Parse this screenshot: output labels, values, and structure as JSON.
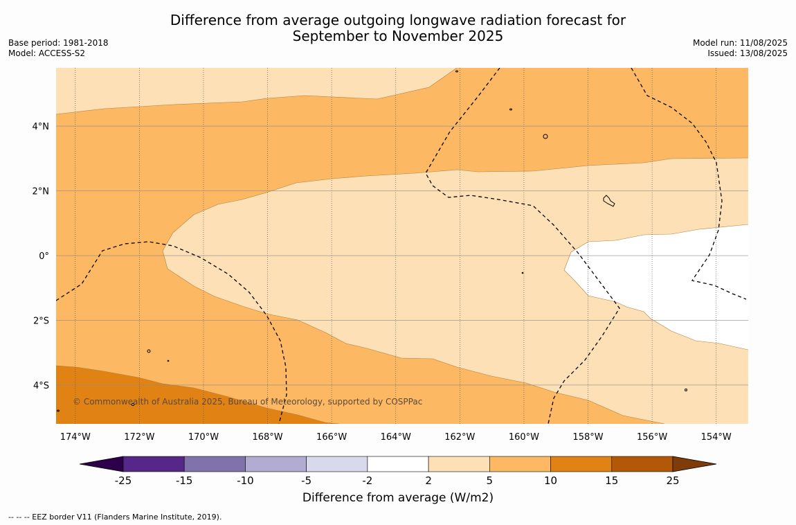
{
  "title_line1": "Difference from average outgoing longwave radiation forecast for",
  "title_line2": "September to November 2025",
  "meta_left": [
    "Base period: 1981-2018",
    "Model: ACCESS-S2"
  ],
  "meta_right": [
    "Model run: 11/08/2025",
    "Issued: 13/08/2025"
  ],
  "copyright": "© Commonwealth of Australia 2025, Bureau of Meteorology, supported by COSPPac",
  "colorbar": {
    "title": "Difference from average (W/m2)",
    "ticks": [
      "-25",
      "-15",
      "-10",
      "-5",
      "-2",
      "2",
      "5",
      "10",
      "15",
      "25"
    ],
    "colors": [
      "#542788",
      "#8073ac",
      "#b2abd2",
      "#d8daeb",
      "#ffffff",
      "#fee0b6",
      "#fdb863",
      "#e08214",
      "#b35806"
    ],
    "under_color": "#2d004b",
    "over_color": "#7f3b08"
  },
  "footer": "--  --  -- EEZ border V11 (Flanders Marine Institute, 2019).",
  "map": {
    "lon_range": [
      -174.6,
      -153.0
    ],
    "lat_range": [
      -5.2,
      5.8
    ],
    "x_ticks": [
      "174°W",
      "172°W",
      "170°W",
      "168°W",
      "166°W",
      "164°W",
      "162°W",
      "160°W",
      "158°W",
      "156°W",
      "154°W"
    ],
    "y_ticks": [
      "4°N",
      "2°N",
      "0°",
      "2°S",
      "4°S"
    ],
    "fill_colors": {
      "band_2_5": "#fee0b6",
      "band_5_10": "#fdb863",
      "band_10_15": "#e08214",
      "band_neg2_2": "#ffffff"
    }
  }
}
